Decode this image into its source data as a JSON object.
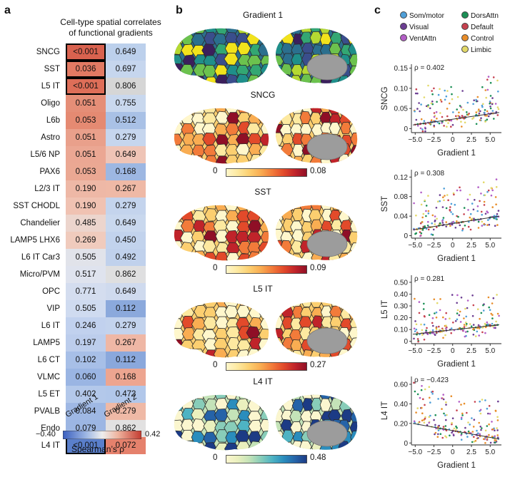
{
  "panel_a": {
    "letter": "a",
    "title_line1": "Cell-type spatial correlates",
    "title_line2": "of functional gradients",
    "col_labels": [
      "Gradient 1",
      "Gradient 2"
    ],
    "rows": [
      {
        "label": "SNCG",
        "g1": "<0.001",
        "g2": "0.649",
        "c1": "#d9624f",
        "c2": "#bcd0ec",
        "h1": true
      },
      {
        "label": "SST",
        "g1": "0.036",
        "g2": "0.697",
        "c1": "#e27a63",
        "c2": "#c6d6ee",
        "h1": true
      },
      {
        "label": "L5 IT",
        "g1": "<0.001",
        "g2": "0.806",
        "c1": "#de6e58",
        "c2": "#d6d6d6",
        "h1": true
      },
      {
        "label": "Oligo",
        "g1": "0.051",
        "g2": "0.755",
        "c1": "#e58e77",
        "c2": "#c9d8ee",
        "h1": false
      },
      {
        "label": "L6b",
        "g1": "0.053",
        "g2": "0.512",
        "c1": "#e58a72",
        "c2": "#a9c1e6",
        "h1": false
      },
      {
        "label": "Astro",
        "g1": "0.051",
        "g2": "0.279",
        "c1": "#e9a08b",
        "c2": "#c6d6ee",
        "h1": false
      },
      {
        "label": "L5/6 NP",
        "g1": "0.051",
        "g2": "0.649",
        "c1": "#eba793",
        "c2": "#efc4b6",
        "h1": false
      },
      {
        "label": "PAX6",
        "g1": "0.053",
        "g2": "0.168",
        "c1": "#eba893",
        "c2": "#9db7e2",
        "h1": false
      },
      {
        "label": "L2/3 IT",
        "g1": "0.190",
        "g2": "0.267",
        "c1": "#eeb8a6",
        "c2": "#efb9a6",
        "h1": false
      },
      {
        "label": "SST CHODL",
        "g1": "0.190",
        "g2": "0.279",
        "c1": "#f0c2b2",
        "c2": "#c4d4ed",
        "h1": false
      },
      {
        "label": "Chandelier",
        "g1": "0.485",
        "g2": "0.649",
        "c1": "#ecd5cd",
        "c2": "#c9d8ee",
        "h1": false
      },
      {
        "label": "LAMP5 LHX6",
        "g1": "0.269",
        "g2": "0.450",
        "c1": "#f0cbbd",
        "c2": "#c2d3ed",
        "h1": false
      },
      {
        "label": "L6 IT Car3",
        "g1": "0.505",
        "g2": "0.492",
        "c1": "#e1e3ea",
        "c2": "#c0d1ec",
        "h1": false
      },
      {
        "label": "Micro/PVM",
        "g1": "0.517",
        "g2": "0.862",
        "c1": "#dfe3ee",
        "c2": "#dfdfe0",
        "h1": false
      },
      {
        "label": "OPC",
        "g1": "0.771",
        "g2": "0.649",
        "c1": "#d4ddef",
        "c2": "#cfdaee",
        "h1": false
      },
      {
        "label": "VIP",
        "g1": "0.505",
        "g2": "0.112",
        "c1": "#cfdbf0",
        "c2": "#8ba9dc",
        "h1": false
      },
      {
        "label": "L6 IT",
        "g1": "0.246",
        "g2": "0.279",
        "c1": "#c1d1ee",
        "c2": "#c3d3ed",
        "h1": false
      },
      {
        "label": "LAMP5",
        "g1": "0.197",
        "g2": "0.267",
        "c1": "#bccdec",
        "c2": "#efb7a5",
        "h1": false
      },
      {
        "label": "L6 CT",
        "g1": "0.102",
        "g2": "0.112",
        "c1": "#a7bfe7",
        "c2": "#8aa8dc",
        "h1": false
      },
      {
        "label": "VLMC",
        "g1": "0.060",
        "g2": "0.168",
        "c1": "#9ab5e3",
        "c2": "#eda590",
        "h1": false
      },
      {
        "label": "L5 ET",
        "g1": "0.402",
        "g2": "0.473",
        "c1": "#b3c8ea",
        "c2": "#b1c7ea",
        "h1": false
      },
      {
        "label": "PVALB",
        "g1": "0.084",
        "g2": "0.279",
        "c1": "#9fb8e4",
        "c2": "#efb9a6",
        "h1": false
      },
      {
        "label": "Endo",
        "g1": "0.079",
        "g2": "0.862",
        "c1": "#9cb6e3",
        "c2": "#e2e1e1",
        "h1": false
      },
      {
        "label": "L4 IT",
        "g1": "<0.001",
        "g2": "0.072",
        "c1": "#5a7fcb",
        "c2": "#e5816c",
        "h1": true
      }
    ],
    "colorbar": {
      "min": "−0.40",
      "max": "0.42",
      "label": "Spearman’s ρ"
    }
  },
  "panel_b": {
    "letter": "b",
    "maps": [
      {
        "title": "Gradient 1",
        "cbar": null,
        "scheme": "viridis"
      },
      {
        "title": "SNCG",
        "cbar": {
          "min": "0",
          "max": "0.08"
        },
        "scheme": "ylorrd"
      },
      {
        "title": "SST",
        "cbar": {
          "min": "0",
          "max": "0.09"
        },
        "scheme": "ylorrd"
      },
      {
        "title": "L5 IT",
        "cbar": {
          "min": "0",
          "max": "0.27"
        },
        "scheme": "ylorrd"
      },
      {
        "title": "L4 IT",
        "cbar": {
          "min": "0",
          "max": "0.48"
        },
        "scheme": "ylgnbu"
      }
    ]
  },
  "panel_c": {
    "letter": "c",
    "legend": [
      {
        "name": "Som/motor",
        "color": "#4f9fd8"
      },
      {
        "name": "DorsAttn",
        "color": "#1b8f55"
      },
      {
        "name": "Visual",
        "color": "#6b3d92"
      },
      {
        "name": "Default",
        "color": "#c6414f"
      },
      {
        "name": "VentAttn",
        "color": "#b35ec6"
      },
      {
        "name": "Control",
        "color": "#e88d2a"
      },
      {
        "name": "Limbic",
        "color": "#e3d969"
      }
    ]
  },
  "chart_data": [
    {
      "type": "scatter",
      "ylabel": "SNCG",
      "xlabel": "Gradient 1",
      "annotation": "ρ = 0.402",
      "xlim": [
        -5.5,
        6.5
      ],
      "ylim": [
        -0.01,
        0.16
      ],
      "xticks": [
        "−5.0",
        "−2.5",
        "0",
        "2.5",
        "5.0"
      ],
      "xtick_values": [
        -5,
        -2.5,
        0,
        2.5,
        5
      ],
      "yticks": [
        "0",
        "0.05",
        "0.10",
        "0.15"
      ],
      "ytick_values": [
        0,
        0.05,
        0.1,
        0.15
      ],
      "fit": [
        [
          -5.3,
          0.009
        ],
        [
          6.2,
          0.04
        ]
      ],
      "n_points": 200,
      "seed": 11
    },
    {
      "type": "scatter",
      "ylabel": "SST",
      "xlabel": "Gradient 1",
      "annotation": "ρ = 0.308",
      "xlim": [
        -5.5,
        6.5
      ],
      "ylim": [
        -0.005,
        0.135
      ],
      "xticks": [
        "−5.0",
        "−2.5",
        "0",
        "2.5",
        "5.0"
      ],
      "xtick_values": [
        -5,
        -2.5,
        0,
        2.5,
        5
      ],
      "yticks": [
        "0",
        "0.04",
        "0.08",
        "0.12"
      ],
      "ytick_values": [
        0,
        0.04,
        0.08,
        0.12
      ],
      "fit": [
        [
          -5.3,
          0.012
        ],
        [
          6.2,
          0.04
        ]
      ],
      "n_points": 200,
      "seed": 23
    },
    {
      "type": "scatter",
      "ylabel": "L5 IT",
      "xlabel": "Gradient 1",
      "annotation": "ρ = 0.281",
      "xlim": [
        -5.5,
        6.5
      ],
      "ylim": [
        -0.02,
        0.56
      ],
      "xticks": [
        "−5.0",
        "−2.5",
        "0",
        "2.5",
        "5.0"
      ],
      "xtick_values": [
        -5,
        -2.5,
        0,
        2.5,
        5
      ],
      "yticks": [
        "0",
        "0.10",
        "0.20",
        "0.30",
        "0.40",
        "0.50"
      ],
      "ytick_values": [
        0,
        0.1,
        0.2,
        0.3,
        0.4,
        0.5
      ],
      "fit": [
        [
          -5.3,
          0.06
        ],
        [
          6.2,
          0.14
        ]
      ],
      "n_points": 200,
      "seed": 37
    },
    {
      "type": "scatter",
      "ylabel": "L4 IT",
      "xlabel": "Gradient 1",
      "annotation": "ρ = −0.423",
      "xlim": [
        -5.5,
        6.5
      ],
      "ylim": [
        -0.02,
        0.68
      ],
      "xticks": [
        "−5.0",
        "−2.5",
        "0",
        "2.5",
        "5.0"
      ],
      "xtick_values": [
        -5,
        -2.5,
        0,
        2.5,
        5
      ],
      "yticks": [
        "0",
        "0.20",
        "0.40",
        "0.60"
      ],
      "ytick_values": [
        0,
        0.2,
        0.4,
        0.6
      ],
      "fit": [
        [
          -5.3,
          0.2
        ],
        [
          6.2,
          0.04
        ]
      ],
      "n_points": 200,
      "seed": 53
    }
  ]
}
